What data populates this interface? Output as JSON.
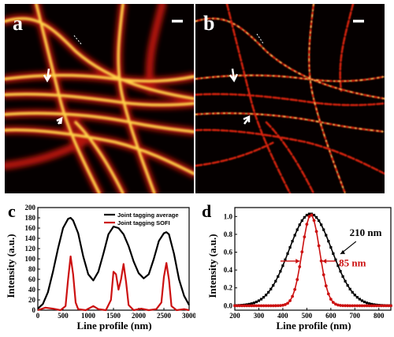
{
  "figure": {
    "panels": [
      {
        "label": "a",
        "description_name": "Joint tagging average"
      },
      {
        "label": "b",
        "description_name": "Joint tagging SOFI"
      }
    ]
  },
  "colors": {
    "black_series": "#000000",
    "red_series": "#cc1111",
    "hot_low": "#1a0000",
    "hot_high": "#ffff60"
  },
  "chart_data": [
    {
      "panel": "c",
      "type": "line",
      "xlabel": "Line profile (nm)",
      "ylabel": "Intensity (a.u.)",
      "xlim": [
        0,
        3000
      ],
      "ylim": [
        0,
        200
      ],
      "xticks": [
        0,
        500,
        1000,
        1500,
        2000,
        2500,
        3000
      ],
      "yticks": [
        0,
        20,
        40,
        60,
        80,
        100,
        120,
        140,
        160,
        180,
        200
      ],
      "legend_position": "top-right",
      "series": [
        {
          "name": "Joint tagging average",
          "color": "#000000",
          "x": [
            0,
            100,
            200,
            300,
            400,
            500,
            600,
            650,
            700,
            800,
            900,
            1000,
            1100,
            1200,
            1300,
            1400,
            1500,
            1600,
            1700,
            1800,
            1900,
            2000,
            2100,
            2200,
            2300,
            2400,
            2500,
            2550,
            2600,
            2700,
            2800,
            2900,
            3000
          ],
          "y": [
            3,
            12,
            35,
            75,
            120,
            160,
            178,
            180,
            175,
            150,
            105,
            70,
            58,
            75,
            110,
            148,
            163,
            160,
            148,
            125,
            95,
            72,
            62,
            70,
            100,
            135,
            150,
            152,
            148,
            110,
            60,
            28,
            10
          ]
        },
        {
          "name": "Joint tagging SOFI",
          "color": "#cc1111",
          "x": [
            0,
            150,
            300,
            450,
            550,
            600,
            650,
            700,
            750,
            800,
            950,
            1100,
            1200,
            1350,
            1450,
            1500,
            1550,
            1600,
            1650,
            1700,
            1750,
            1800,
            1900,
            2050,
            2200,
            2350,
            2450,
            2500,
            2550,
            2600,
            2650,
            2750,
            2900,
            3000
          ],
          "y": [
            0,
            5,
            3,
            0,
            8,
            60,
            105,
            70,
            15,
            2,
            0,
            8,
            2,
            0,
            20,
            75,
            70,
            40,
            60,
            90,
            55,
            10,
            0,
            3,
            0,
            2,
            15,
            65,
            92,
            60,
            8,
            0,
            2,
            0
          ]
        }
      ]
    },
    {
      "panel": "d",
      "type": "line",
      "xlabel": "Line profile (nm)",
      "ylabel": "Intensity (a.u.)",
      "xlim": [
        200,
        850
      ],
      "ylim": [
        -0.05,
        1.1
      ],
      "xticks": [
        200,
        300,
        400,
        500,
        600,
        700,
        800
      ],
      "yticks": [
        0.0,
        0.2,
        0.4,
        0.6,
        0.8,
        1.0
      ],
      "annotations": [
        "210 nm",
        "85 nm"
      ],
      "series": [
        {
          "color": "#000000",
          "fwhm": 210,
          "center": 515,
          "peak": 1.03,
          "x_start": 200,
          "x_end": 850,
          "step": 10
        },
        {
          "color": "#cc1111",
          "fwhm": 85,
          "center": 517,
          "peak": 1.02,
          "x_start": 200,
          "x_end": 850,
          "step": 10
        }
      ]
    }
  ]
}
